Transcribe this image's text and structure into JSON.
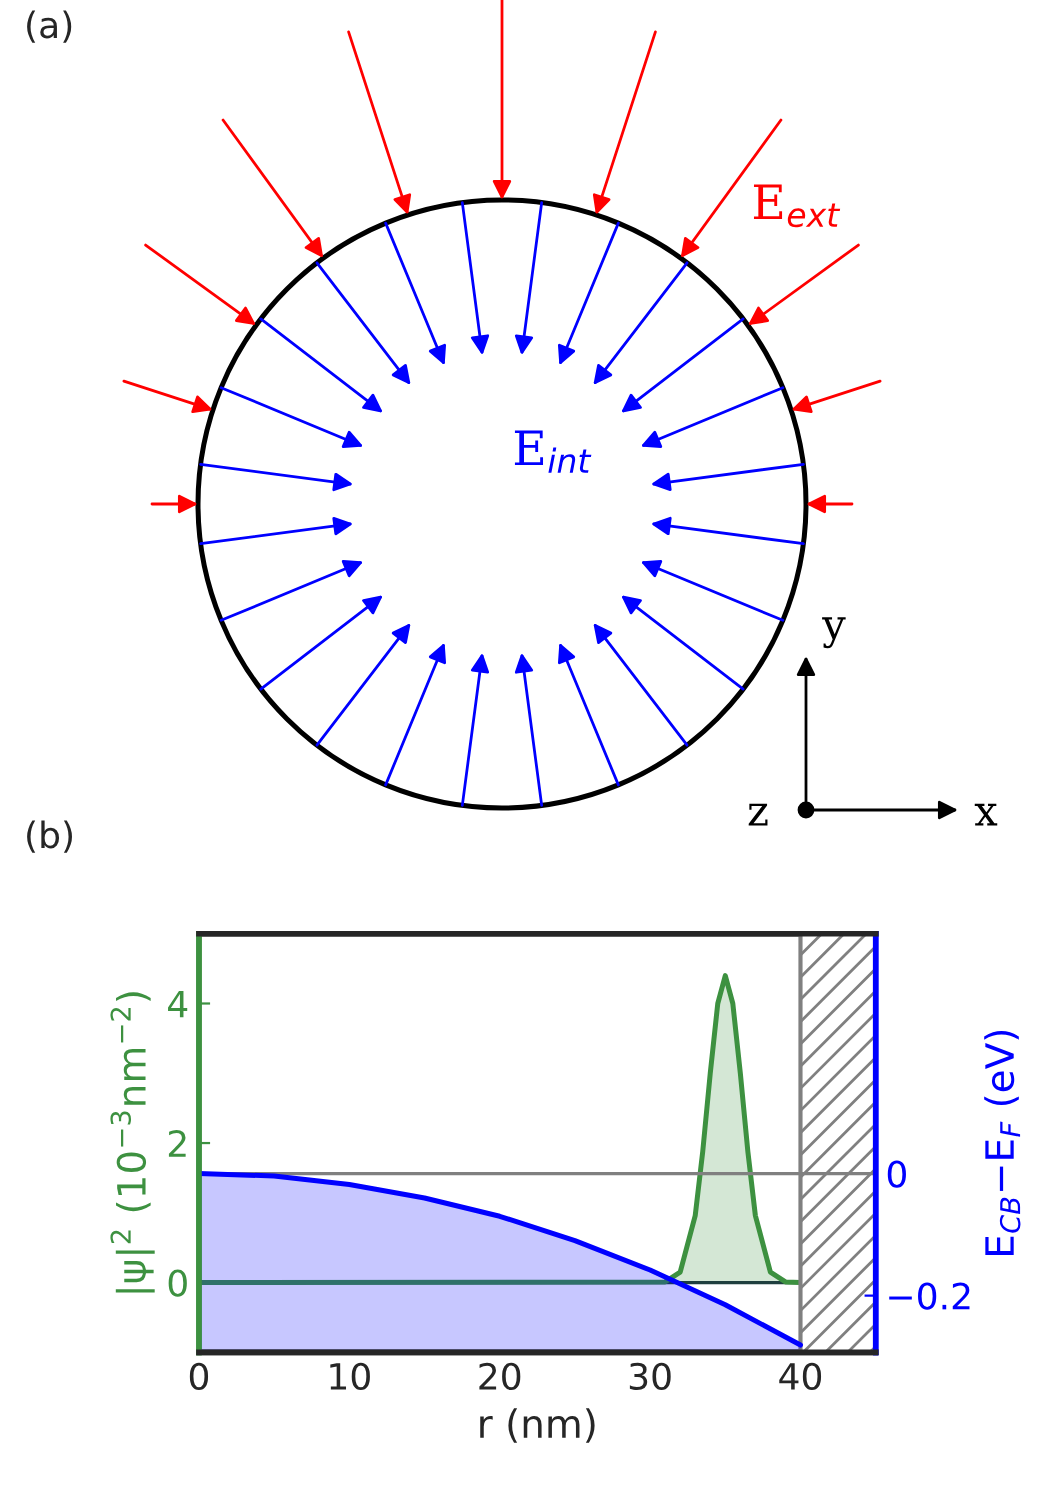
{
  "chart_data": [
    {
      "type": "other",
      "title": "(a)",
      "annotations": [
        "E$_{ext}$",
        "E$_{int}$",
        "y",
        "z",
        "x"
      ]
    },
    {
      "type": "area",
      "title": "(b)",
      "xlabel": "r (nm)",
      "ylabel": "|ψ|$^{2}$ (10$^{−3}$nm$^{−2}$)",
      "y2label": "E$_{CB}$−E$_{F}$ (eV)",
      "xlim": [
        0,
        45
      ],
      "xticks": [
        0,
        10,
        20,
        30,
        40
      ],
      "ylim": [
        -1,
        5
      ],
      "yticks": [
        0,
        2,
        4
      ],
      "y2lim": [
        -0.293,
        0.393
      ],
      "y2ticks": [
        0,
        -0.2
      ],
      "series": [
        {
          "type": "area",
          "color": "#3d9140",
          "x": [
            0,
            31,
            32,
            33,
            33.5,
            34,
            34.5,
            35,
            35.5,
            36,
            36.5,
            37,
            38,
            39,
            40
          ],
          "values": [
            0,
            0.01,
            0.15,
            0.96,
            1.88,
            3.0,
            4.0,
            4.4,
            4.0,
            3.0,
            1.88,
            0.96,
            0.15,
            0.01,
            0
          ]
        },
        {
          "type": "line",
          "axis": "y2",
          "color": "#0000ff",
          "x": [
            0,
            5,
            10,
            15,
            20,
            25,
            30,
            35,
            40
          ],
          "values": [
            0,
            -0.004,
            -0.018,
            -0.04,
            -0.07,
            -0.11,
            -0.158,
            -0.215,
            -0.281
          ],
          "lower": [
            -0.293,
            -0.293,
            -0.293,
            -0.293,
            -0.293,
            -0.293,
            -0.293,
            -0.293,
            -0.293
          ],
          "upper": [
            0,
            -0.004,
            -0.018,
            -0.04,
            -0.07,
            -0.11,
            -0.158,
            -0.215,
            -0.281
          ]
        }
      ],
      "ref_lines": [
        {
          "axis": "y",
          "value": 0,
          "color": "#1f3f3f"
        },
        {
          "axis": "y2",
          "value": 0,
          "color": "#808080"
        }
      ],
      "bands": [
        {
          "axis": "x",
          "from": 40,
          "to": 45,
          "color": "#808080"
        }
      ],
      "grid": false,
      "legend": false
    }
  ]
}
